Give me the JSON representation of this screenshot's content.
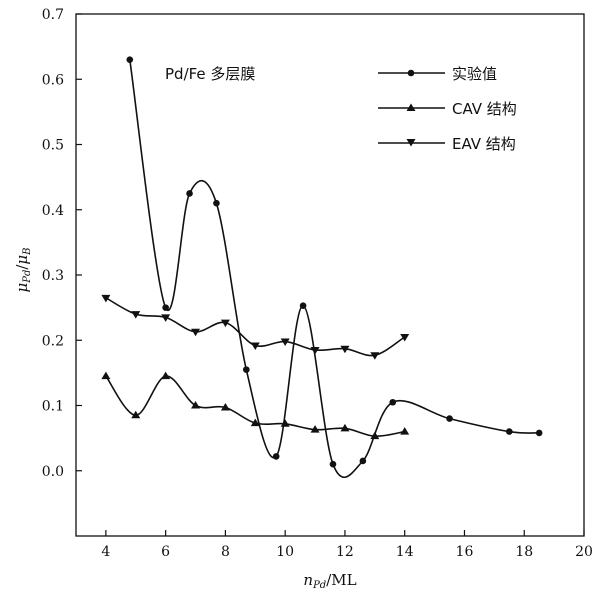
{
  "chart_data": {
    "type": "line",
    "annotation": "Pd/Fe 多层膜",
    "xlabel_main": "n",
    "xlabel_sub": "Pd",
    "xlabel_unit": "/ML",
    "ylabel_num_main": "μ",
    "ylabel_num_sub": "Pd",
    "ylabel_sep": "/",
    "ylabel_den_main": "μ",
    "ylabel_den_sub": "B",
    "xlim": [
      3,
      20
    ],
    "ylim": [
      -0.1,
      0.7
    ],
    "x_ticks": [
      "4",
      "6",
      "8",
      "10",
      "12",
      "14",
      "16",
      "18",
      "20"
    ],
    "y_ticks": [
      "0.0",
      "0.1",
      "0.2",
      "0.3",
      "0.4",
      "0.5",
      "0.6",
      "0.7"
    ],
    "legend_position": "top-right",
    "grid": false,
    "series": [
      {
        "name": "实验值",
        "marker": "circle",
        "x": [
          4.8,
          6.0,
          6.8,
          7.7,
          8.7,
          9.7,
          10.6,
          11.6,
          12.6,
          13.6,
          15.5,
          17.5,
          18.5
        ],
        "y": [
          0.63,
          0.25,
          0.425,
          0.41,
          0.155,
          0.022,
          0.253,
          0.01,
          0.015,
          0.105,
          0.08,
          0.06,
          0.058
        ]
      },
      {
        "name": "CAV 结构",
        "marker": "triangle-up",
        "x": [
          4,
          5,
          6,
          7,
          8,
          9,
          10,
          11,
          12,
          13,
          14
        ],
        "y": [
          0.145,
          0.085,
          0.145,
          0.1,
          0.097,
          0.073,
          0.072,
          0.063,
          0.065,
          0.053,
          0.06
        ]
      },
      {
        "name": "EAV 结构",
        "marker": "triangle-down",
        "x": [
          4,
          5,
          6,
          7,
          8,
          9,
          10,
          11,
          12,
          13,
          14
        ],
        "y": [
          0.265,
          0.24,
          0.235,
          0.213,
          0.227,
          0.192,
          0.198,
          0.185,
          0.187,
          0.177,
          0.205
        ]
      }
    ]
  }
}
